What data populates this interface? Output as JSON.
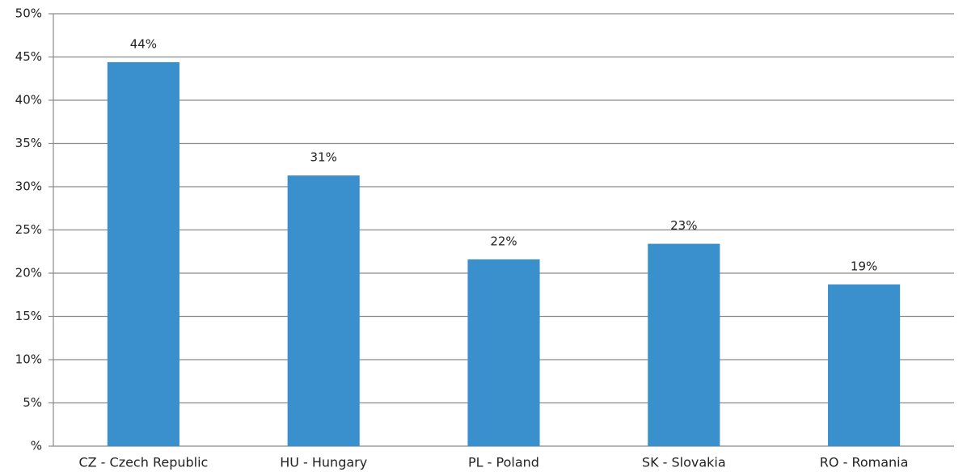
{
  "chart_data": {
    "type": "bar",
    "categories": [
      "CZ - Czech Republic",
      "HU - Hungary",
      "PL - Poland",
      "SK - Slovakia",
      "RO - Romania"
    ],
    "values": [
      44.4,
      31.3,
      21.6,
      23.4,
      18.7
    ],
    "value_labels": [
      "44%",
      "31%",
      "22%",
      "23%",
      "19%"
    ],
    "color": "#3a90cd",
    "ylim": [
      0,
      50
    ],
    "yticks": [
      {
        "value": 0,
        "label": "%"
      },
      {
        "value": 5,
        "label": "5%"
      },
      {
        "value": 10,
        "label": "10%"
      },
      {
        "value": 15,
        "label": "15%"
      },
      {
        "value": 20,
        "label": "20%"
      },
      {
        "value": 25,
        "label": "25%"
      },
      {
        "value": 30,
        "label": "30%"
      },
      {
        "value": 35,
        "label": "35%"
      },
      {
        "value": 40,
        "label": "40%"
      },
      {
        "value": 45,
        "label": "45%"
      },
      {
        "value": 50,
        "label": "50%"
      }
    ],
    "grid": true
  }
}
